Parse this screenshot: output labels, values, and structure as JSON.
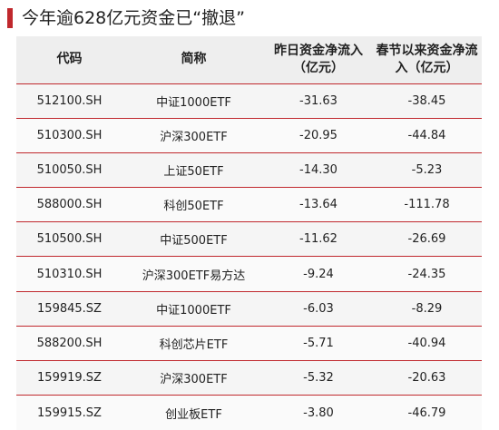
{
  "title": "今年逾628亿元资金已“撤退”",
  "accent_color": "#c0282d",
  "headers": [
    "代码",
    "简称",
    "昨日资金净流入（亿元）",
    "春节以来资金净流入（亿元）"
  ],
  "rows": [
    {
      "code": "512100.SH",
      "name": "中证1000ETF",
      "yesterday": "-31.63",
      "since_festival": "-38.45"
    },
    {
      "code": "510300.SH",
      "name": "沪深300ETF",
      "yesterday": "-20.95",
      "since_festival": "-44.84"
    },
    {
      "code": "510050.SH",
      "name": "上证50ETF",
      "yesterday": "-14.30",
      "since_festival": "-5.23"
    },
    {
      "code": "588000.SH",
      "name": "科创50ETF",
      "yesterday": "-13.64",
      "since_festival": "-111.78"
    },
    {
      "code": "510500.SH",
      "name": "中证500ETF",
      "yesterday": "-11.62",
      "since_festival": "-26.69"
    },
    {
      "code": "510310.SH",
      "name": "沪深300ETF易方达",
      "yesterday": "-9.24",
      "since_festival": "-24.35"
    },
    {
      "code": "159845.SZ",
      "name": "中证1000ETF",
      "yesterday": "-6.03",
      "since_festival": "-8.29"
    },
    {
      "code": "588200.SH",
      "name": "科创芯片ETF",
      "yesterday": "-5.71",
      "since_festival": "-40.94"
    },
    {
      "code": "159919.SZ",
      "name": "沪深300ETF",
      "yesterday": "-5.32",
      "since_festival": "-20.63"
    },
    {
      "code": "159915.SZ",
      "name": "创业板ETF",
      "yesterday": "-3.80",
      "since_festival": "-46.79"
    }
  ]
}
